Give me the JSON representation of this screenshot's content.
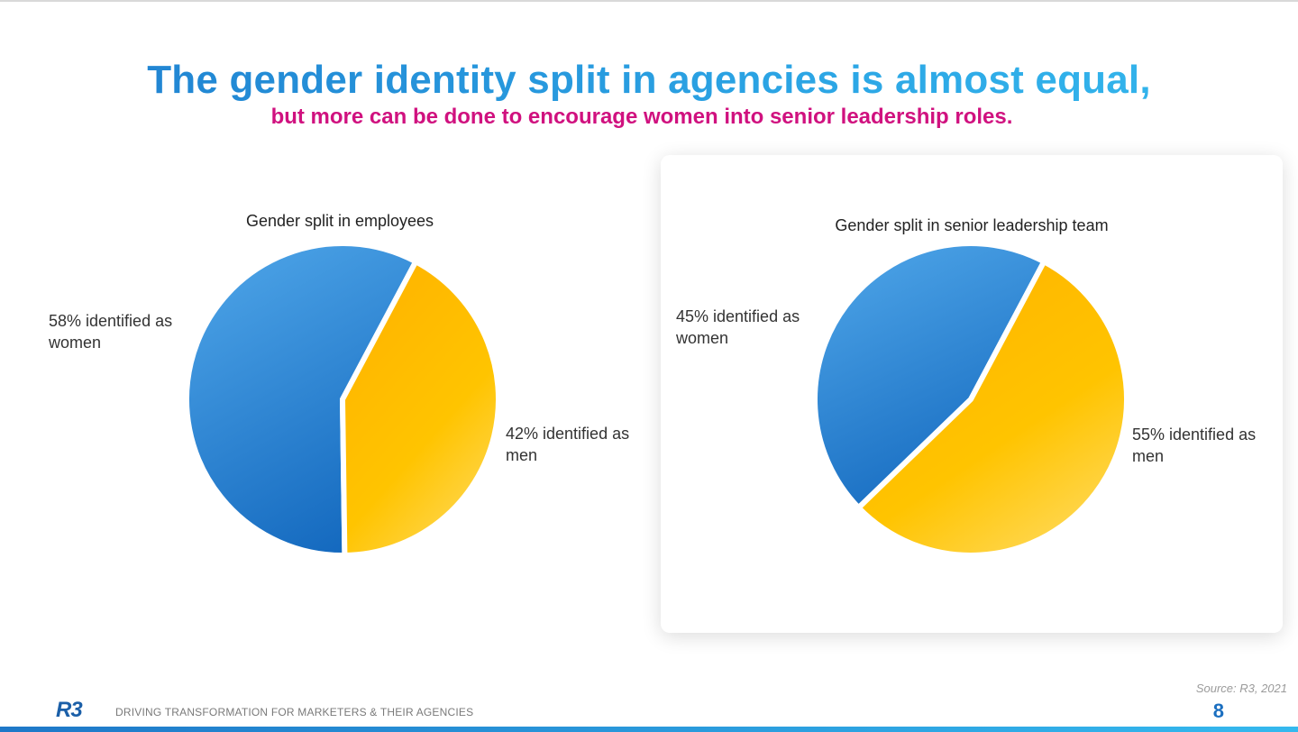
{
  "slide": {
    "title": "The gender identity split in agencies is almost equal,",
    "subtitle": "but more can be done to encourage women into senior leadership roles.",
    "source": "Source: R3, 2021",
    "page_number": "8",
    "logo": "R3",
    "tagline": "DRIVING TRANSFORMATION FOR MARKETERS & THEIR AGENCIES"
  },
  "colors": {
    "title_blue": "#1f7fcf",
    "subtitle_magenta": "#d0117f",
    "women_blue": "#1e78c8",
    "men_yellow": "#ffc000"
  },
  "chart_data": [
    {
      "type": "pie",
      "title": "Gender split in employees",
      "slices": [
        {
          "label": "58% identified as women",
          "label_lines": [
            "58% identified as",
            "women"
          ],
          "value": 58,
          "color": "#1e78c8"
        },
        {
          "label": "42% identified as men",
          "label_lines": [
            "42% identified as",
            "men"
          ],
          "value": 42,
          "color": "#ffc000"
        }
      ]
    },
    {
      "type": "pie",
      "title": "Gender split in senior leadership team",
      "slices": [
        {
          "label": "45% identified as women",
          "label_lines": [
            "45% identified as",
            "women"
          ],
          "value": 45,
          "color": "#1e78c8"
        },
        {
          "label": "55% identified as men",
          "label_lines": [
            "55% identified as",
            "men"
          ],
          "value": 55,
          "color": "#ffc000"
        }
      ]
    }
  ]
}
